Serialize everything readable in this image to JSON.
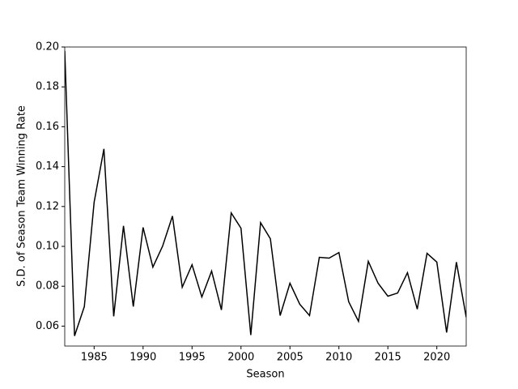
{
  "chart_data": {
    "type": "line",
    "xlabel": "Season",
    "ylabel": "S.D. of Season Team Winning Rate",
    "x": [
      1982,
      1983,
      1984,
      1985,
      1986,
      1987,
      1988,
      1989,
      1990,
      1991,
      1992,
      1993,
      1994,
      1995,
      1996,
      1997,
      1998,
      1999,
      2000,
      2001,
      2002,
      2003,
      2004,
      2005,
      2006,
      2007,
      2008,
      2009,
      2010,
      2011,
      2012,
      2013,
      2014,
      2015,
      2016,
      2017,
      2018,
      2019,
      2020,
      2021,
      2022,
      2023
    ],
    "series": [
      {
        "color": "#000000",
        "values": [
          0.198,
          0.0551,
          0.0698,
          0.1221,
          0.1489,
          0.0649,
          0.1103,
          0.0698,
          0.1095,
          0.0896,
          0.1002,
          0.1152,
          0.0795,
          0.0908,
          0.0746,
          0.0876,
          0.0681,
          0.1168,
          0.1091,
          0.0555,
          0.1119,
          0.1038,
          0.0653,
          0.0815,
          0.071,
          0.0653,
          0.0945,
          0.0941,
          0.0969,
          0.0722,
          0.0624,
          0.0925,
          0.0815,
          0.075,
          0.0766,
          0.0868,
          0.0685,
          0.0965,
          0.0921,
          0.0568,
          0.0921,
          0.0645
        ]
      }
    ],
    "xlim": [
      1982,
      2023
    ],
    "xticks": [
      1985,
      1990,
      1995,
      2000,
      2005,
      2010,
      2015,
      2020
    ],
    "ylim": [
      0.05,
      0.2
    ],
    "yticks": [
      0.06,
      0.08,
      {
        "value": 0.1,
        "label": "0.10"
      },
      0.12,
      0.14,
      0.16,
      0.18,
      {
        "value": 0.2,
        "label": "0.20"
      }
    ]
  }
}
